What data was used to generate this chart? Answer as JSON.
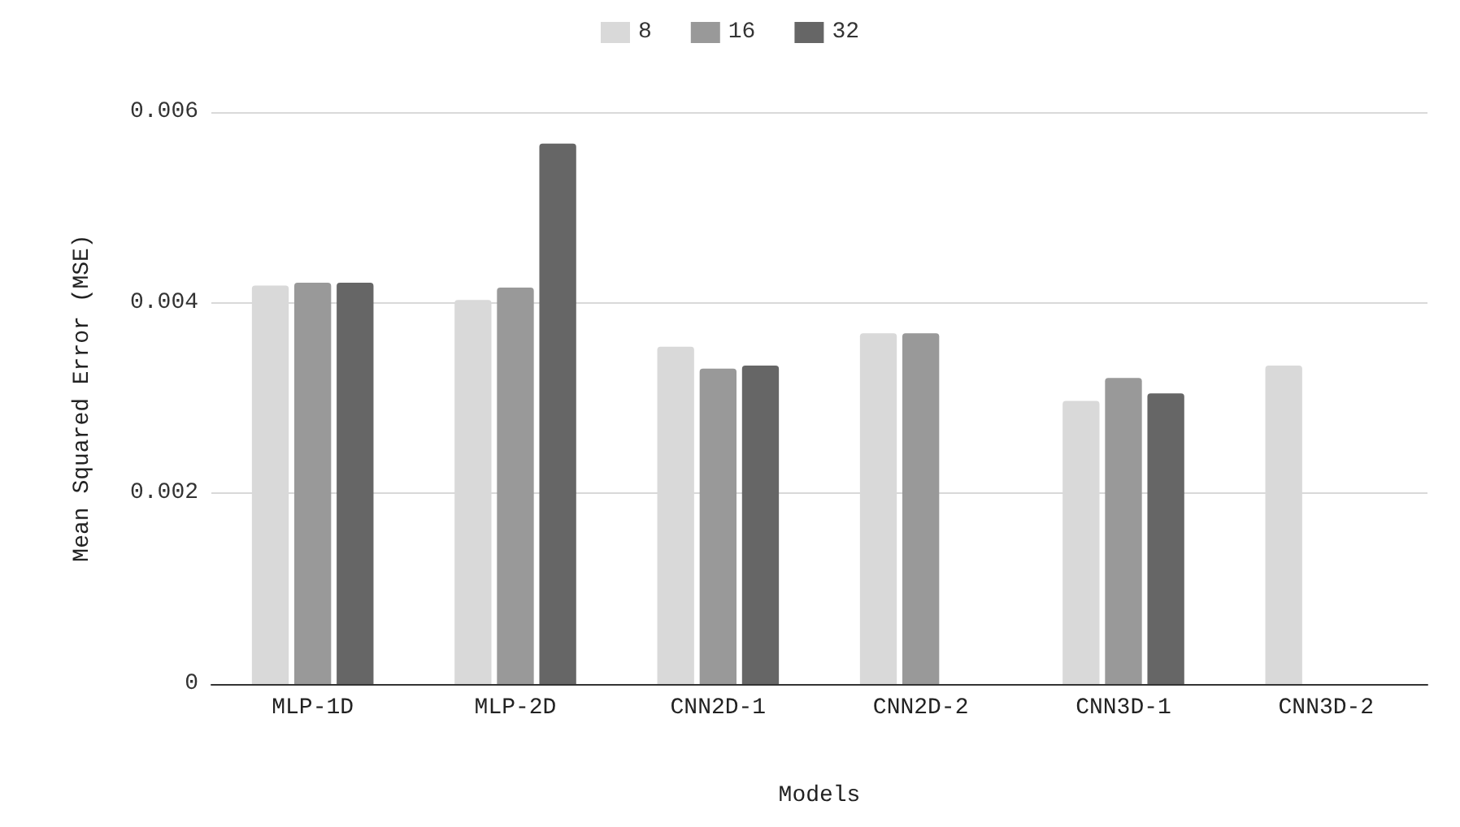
{
  "chart_data": {
    "type": "bar",
    "xlabel": "Models",
    "ylabel": "Mean Squared Error (MSE)",
    "categories": [
      "MLP-1D",
      "MLP-2D",
      "CNN2D-1",
      "CNN2D-2",
      "CNN3D-1",
      "CNN3D-2"
    ],
    "series": [
      {
        "name": "8",
        "color": "#d9d9d9",
        "values": [
          0.00418,
          0.00403,
          0.00354,
          0.00368,
          0.00297,
          0.00334
        ]
      },
      {
        "name": "16",
        "color": "#999999",
        "values": [
          0.00421,
          0.00416,
          0.00331,
          0.00368,
          0.00321,
          null
        ]
      },
      {
        "name": "32",
        "color": "#666666",
        "values": [
          0.00421,
          0.00567,
          0.00334,
          null,
          0.00305,
          null
        ]
      }
    ],
    "ylim": [
      0,
      0.006
    ],
    "yticks": [
      0,
      0.002,
      0.004,
      0.006
    ],
    "grid": "y",
    "legend": "top"
  }
}
